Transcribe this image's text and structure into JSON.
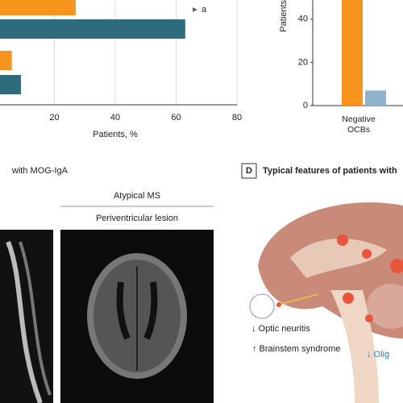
{
  "chart_data": [
    {
      "type": "hbar",
      "categories": [
        null,
        null,
        null,
        null
      ],
      "values": [
        27,
        63,
        6,
        9
      ],
      "colors": [
        "#f7941d",
        "#2e6b7c",
        "#f7941d",
        "#2e6b7c"
      ],
      "annotations": [
        {
          "index": 1,
          "text": "a"
        }
      ],
      "xlabel": "Patients, %",
      "xlim": [
        0,
        80
      ],
      "xticks": [
        20,
        40,
        60,
        80
      ],
      "grid": true
    },
    {
      "type": "bar",
      "categories": [
        "Negative OCBs"
      ],
      "values": [
        [
          50,
          7
        ]
      ],
      "colors": [
        "#f7941d",
        "#8fb3cc"
      ],
      "ylabel": "Patients",
      "ylim": [
        0,
        50
      ],
      "yticks": [
        0,
        20,
        40
      ],
      "grid": false
    }
  ],
  "panel_c": {
    "title": "with MOG-IgA",
    "header": "Atypical MS",
    "subheader": "Periventricular lesion"
  },
  "panel_d": {
    "letter": "D",
    "title": "Typical features of patients with",
    "labels": [
      "↓ Optic neuritis",
      "↑ Brainstem syndrome",
      "↓ Olig"
    ]
  }
}
